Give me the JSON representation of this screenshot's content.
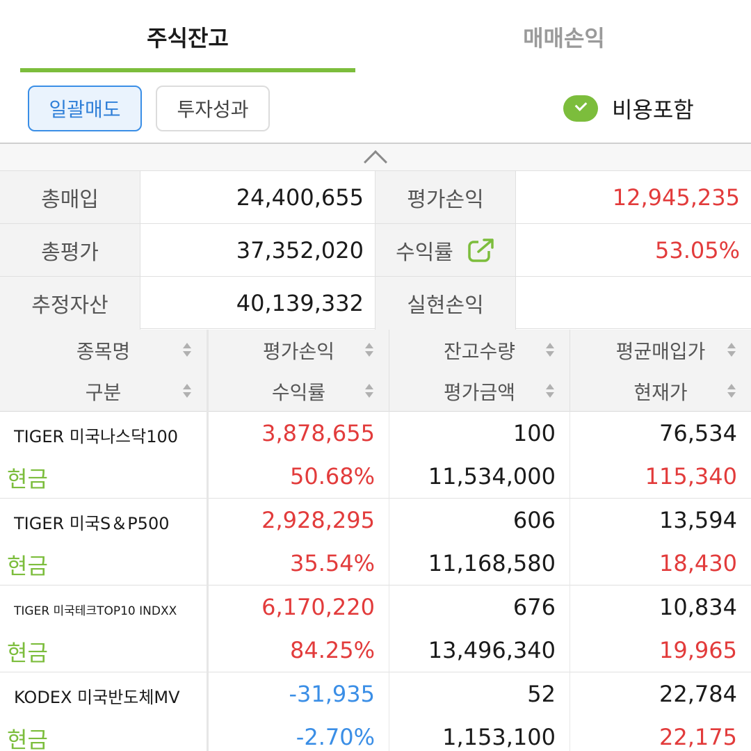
{
  "tabs": {
    "active": "주식잔고",
    "inactive": "매매손익"
  },
  "actions": {
    "bulk_sell": "일괄매도",
    "performance": "투자성과",
    "cost_include": "비용포함"
  },
  "summary": {
    "total_purchase_label": "총매입",
    "total_purchase": "24,400,655",
    "eval_pl_label": "평가손익",
    "eval_pl": "12,945,235",
    "total_eval_label": "총평가",
    "total_eval": "37,352,020",
    "return_label": "수익률",
    "return_rate": "53.05%",
    "est_assets_label": "추정자산",
    "est_assets": "40,139,332",
    "realized_pl_label": "실현손익",
    "realized_pl": ""
  },
  "table_header": {
    "col1_top": "종목명",
    "col1_bot": "구분",
    "col2_top": "평가손익",
    "col2_bot": "수익률",
    "col3_top": "잔고수량",
    "col3_bot": "평가금액",
    "col4_top": "평균매입가",
    "col4_bot": "현재가"
  },
  "rows": [
    {
      "name": "TIGER 미국나스닥100",
      "type": "현금",
      "eval_pl": "3,878,655",
      "return": "50.68%",
      "qty": "100",
      "eval_amt": "11,534,000",
      "avg_price": "76,534",
      "cur_price": "115,340"
    },
    {
      "name": "TIGER 미국S＆P500",
      "type": "현금",
      "eval_pl": "2,928,295",
      "return": "35.54%",
      "qty": "606",
      "eval_amt": "11,168,580",
      "avg_price": "13,594",
      "cur_price": "18,430"
    },
    {
      "name": "TIGER 미국테크TOP10 INDXX",
      "type": "현금",
      "eval_pl": "6,170,220",
      "return": "84.25%",
      "qty": "676",
      "eval_amt": "13,496,340",
      "avg_price": "10,834",
      "cur_price": "19,965"
    },
    {
      "name": "KODEX 미국반도체MV",
      "type": "현금",
      "eval_pl": "-31,935",
      "return": "-2.70%",
      "qty": "52",
      "eval_amt": "1,153,100",
      "avg_price": "22,784",
      "cur_price": "22,175"
    }
  ],
  "colors": {
    "accent_green": "#7cbd3c",
    "profit_red": "#e23b3b",
    "loss_blue": "#3a8ee6"
  },
  "icons": {
    "check": "check-circle-icon",
    "collapse": "chevron-up-icon",
    "external": "external-link-icon",
    "sort": "sort-icon"
  }
}
